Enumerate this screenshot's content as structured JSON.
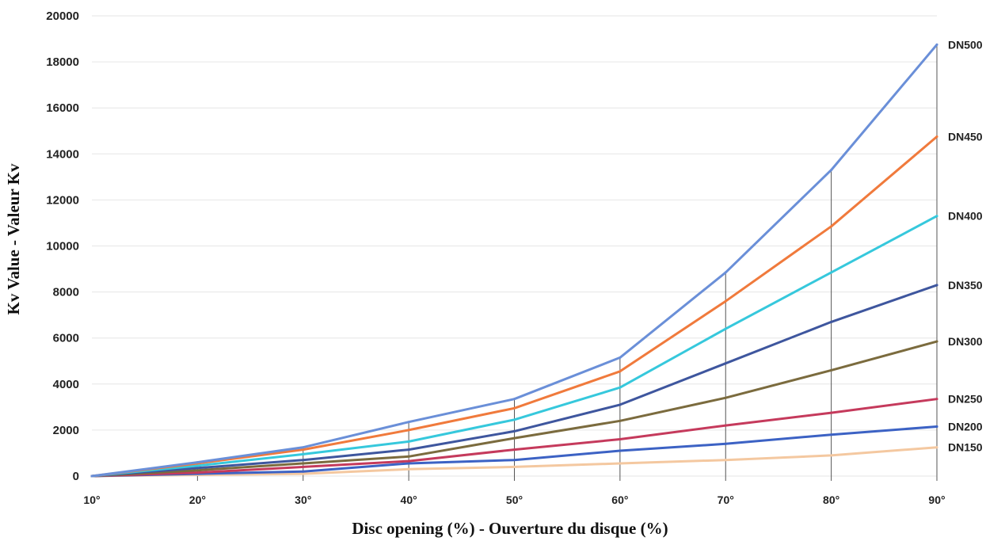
{
  "chart_data": {
    "type": "line",
    "title": "",
    "xlabel": "Disc opening (%) - Ouverture du disque (%)",
    "ylabel": "Kv Value - Valeur Kv",
    "x": [
      "10°",
      "20°",
      "30°",
      "40°",
      "50°",
      "60°",
      "70°",
      "80°",
      "90°"
    ],
    "ylim": [
      0,
      20000
    ],
    "yticks": [
      0,
      2000,
      4000,
      6000,
      8000,
      10000,
      12000,
      14000,
      16000,
      18000,
      20000
    ],
    "grid": true,
    "legend": "series labels at right end of lines",
    "series": [
      {
        "name": "DN500",
        "color": "#6a8fd8",
        "values": [
          0,
          600,
          1250,
          2350,
          3350,
          5150,
          8850,
          13300,
          18750
        ]
      },
      {
        "name": "DN450",
        "color": "#f07a3c",
        "values": [
          0,
          550,
          1150,
          2000,
          2950,
          4550,
          7600,
          10850,
          14750
        ]
      },
      {
        "name": "DN400",
        "color": "#36c8dc",
        "values": [
          0,
          450,
          950,
          1500,
          2450,
          3850,
          6400,
          8850,
          11300
        ]
      },
      {
        "name": "DN350",
        "color": "#3e569e",
        "values": [
          0,
          350,
          700,
          1150,
          1950,
          3100,
          4900,
          6700,
          8300
        ]
      },
      {
        "name": "DN300",
        "color": "#7b6b3e",
        "values": [
          0,
          250,
          550,
          850,
          1650,
          2400,
          3400,
          4600,
          5850
        ]
      },
      {
        "name": "DN250",
        "color": "#c53a5c",
        "values": [
          0,
          150,
          400,
          650,
          1150,
          1600,
          2200,
          2750,
          3350
        ]
      },
      {
        "name": "DN200",
        "color": "#3c62c4",
        "values": [
          0,
          100,
          200,
          550,
          700,
          1100,
          1400,
          1800,
          2150
        ]
      },
      {
        "name": "DN150",
        "color": "#f4c8a0",
        "values": [
          0,
          50,
          100,
          300,
          400,
          550,
          700,
          900,
          1250
        ]
      }
    ]
  }
}
